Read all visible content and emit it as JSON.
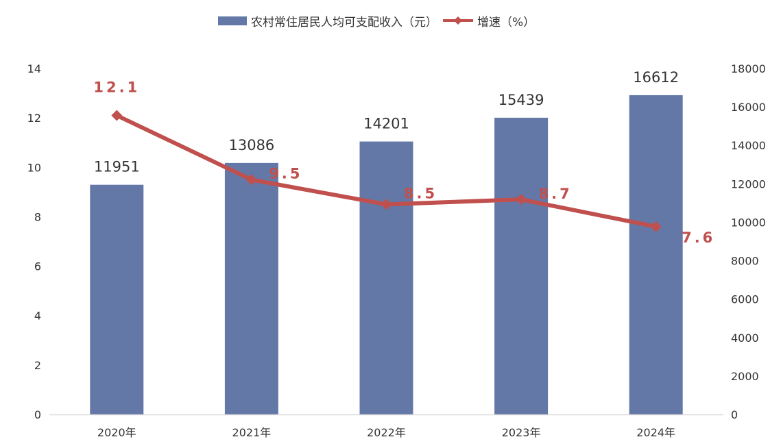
{
  "chart_data": {
    "type": "bar",
    "categories": [
      "2020年",
      "2021年",
      "2022年",
      "2023年",
      "2024年"
    ],
    "series": [
      {
        "name": "农村常住居民人均可支配收入（元）",
        "type": "bar",
        "axis": "right",
        "values": [
          11951,
          13086,
          14201,
          15439,
          16612
        ],
        "color": "#6478a8",
        "labels": [
          "11951",
          "13086",
          "14201",
          "15439",
          "16612"
        ]
      },
      {
        "name": "增速（%）",
        "type": "line",
        "axis": "left",
        "values": [
          12.1,
          9.5,
          8.5,
          8.7,
          7.6
        ],
        "color": "#c0504d",
        "labels": [
          "12.1",
          "9.5",
          "8.5",
          "8.7",
          "7.6"
        ]
      }
    ],
    "y_left": {
      "min": 0,
      "max": 14,
      "ticks": [
        "0",
        "2",
        "4",
        "6",
        "8",
        "10",
        "12",
        "14"
      ]
    },
    "y_right": {
      "min": 0,
      "max": 18000,
      "ticks": [
        "0",
        "2000",
        "4000",
        "6000",
        "8000",
        "10000",
        "12000",
        "14000",
        "16000",
        "18000"
      ]
    },
    "legend": {
      "position": "top"
    },
    "grid": false
  }
}
